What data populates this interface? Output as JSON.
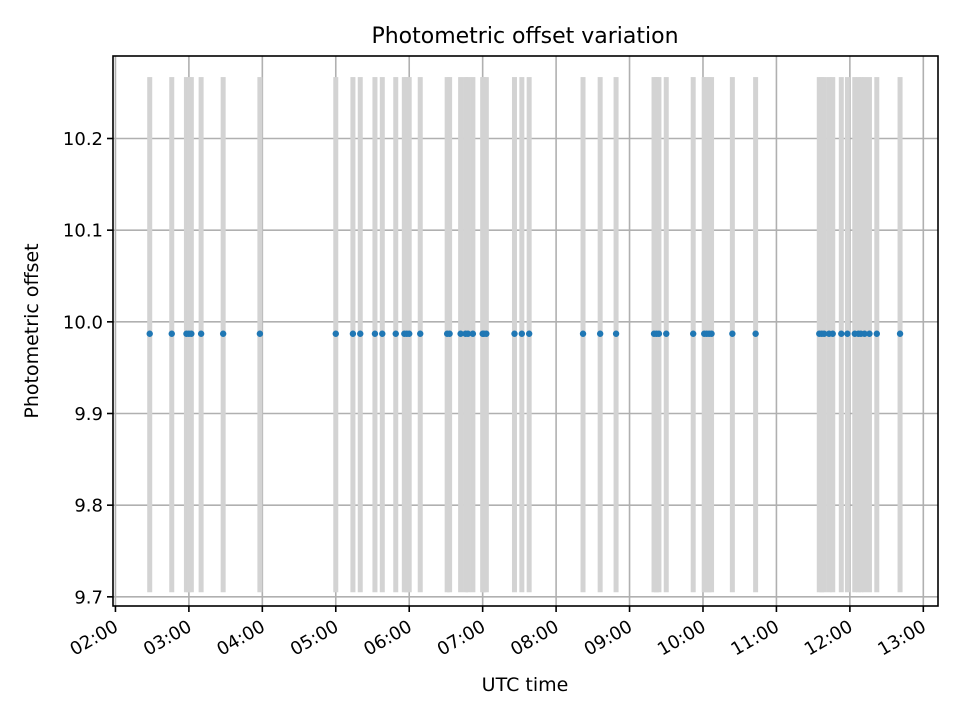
{
  "chart_data": {
    "type": "scatter",
    "title": "Photometric offset variation",
    "xlabel": "UTC time",
    "ylabel": "Photometric offset",
    "x_ticks": [
      "02:00",
      "03:00",
      "04:00",
      "05:00",
      "06:00",
      "07:00",
      "08:00",
      "09:00",
      "10:00",
      "11:00",
      "12:00",
      "13:00"
    ],
    "y_ticks": [
      "9.7",
      "9.8",
      "9.9",
      "10.0",
      "10.1",
      "10.2"
    ],
    "xlim": [
      "01:58",
      "13:12"
    ],
    "ylim": [
      9.69,
      10.29
    ],
    "grid": true,
    "marker_color": "#1f77b4",
    "band_color": "#d3d3d3",
    "band_range": [
      9.705,
      10.267
    ],
    "x": [
      "02:28",
      "02:46",
      "02:58",
      "03:00",
      "03:02",
      "03:10",
      "03:28",
      "03:58",
      "05:00",
      "05:14",
      "05:20",
      "05:32",
      "05:38",
      "05:49",
      "05:56",
      "05:58",
      "06:00",
      "06:09",
      "06:31",
      "06:33",
      "06:42",
      "06:46",
      "06:48",
      "06:52",
      "07:00",
      "07:01",
      "07:03",
      "07:26",
      "07:32",
      "07:38",
      "08:22",
      "08:36",
      "08:49",
      "09:20",
      "09:22",
      "09:24",
      "09:30",
      "09:52",
      "10:01",
      "10:03",
      "10:05",
      "10:07",
      "10:24",
      "10:43",
      "11:35",
      "11:37",
      "11:39",
      "11:43",
      "11:46",
      "11:53",
      "11:58",
      "12:04",
      "12:07",
      "12:09",
      "12:12",
      "12:16",
      "12:22",
      "12:41"
    ],
    "y": [
      9.987,
      9.987,
      9.987,
      9.987,
      9.987,
      9.987,
      9.987,
      9.987,
      9.987,
      9.987,
      9.987,
      9.987,
      9.987,
      9.987,
      9.987,
      9.987,
      9.987,
      9.987,
      9.987,
      9.987,
      9.987,
      9.987,
      9.987,
      9.987,
      9.987,
      9.987,
      9.987,
      9.987,
      9.987,
      9.987,
      9.987,
      9.987,
      9.987,
      9.987,
      9.987,
      9.987,
      9.987,
      9.987,
      9.987,
      9.987,
      9.987,
      9.987,
      9.987,
      9.987,
      9.987,
      9.987,
      9.987,
      9.987,
      9.987,
      9.987,
      9.987,
      9.987,
      9.987,
      9.987,
      9.987,
      9.987,
      9.987,
      9.987
    ]
  }
}
